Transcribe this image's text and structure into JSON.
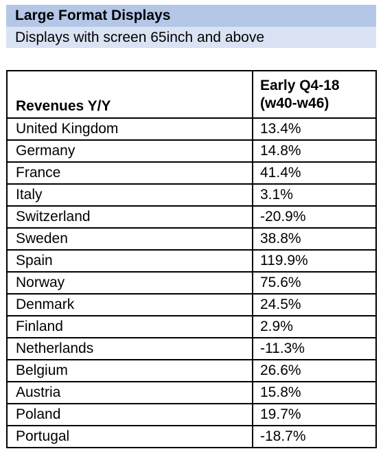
{
  "title": "Large Format Displays",
  "subtitle": "Displays with screen 65inch and above",
  "chart_data": {
    "type": "table",
    "columns": [
      "Revenues Y/Y",
      "Early Q4-18 (w40-w46)"
    ],
    "rows": [
      {
        "country": "United Kingdom",
        "value": "13.4%"
      },
      {
        "country": "Germany",
        "value": "14.8%"
      },
      {
        "country": "France",
        "value": "41.4%"
      },
      {
        "country": "Italy",
        "value": "3.1%"
      },
      {
        "country": "Switzerland",
        "value": "-20.9%"
      },
      {
        "country": "Sweden",
        "value": "38.8%"
      },
      {
        "country": "Spain",
        "value": "119.9%"
      },
      {
        "country": "Norway",
        "value": "75.6%"
      },
      {
        "country": "Denmark",
        "value": "24.5%"
      },
      {
        "country": "Finland",
        "value": "2.9%"
      },
      {
        "country": "Netherlands",
        "value": "-11.3%"
      },
      {
        "country": "Belgium",
        "value": "26.6%"
      },
      {
        "country": "Austria",
        "value": "15.8%"
      },
      {
        "country": "Poland",
        "value": "19.7%"
      },
      {
        "country": "Portugal",
        "value": "-18.7%"
      }
    ]
  },
  "colors": {
    "title_bg": "#b4c7e7",
    "subtitle_bg": "#dae3f3",
    "border": "#000000"
  }
}
